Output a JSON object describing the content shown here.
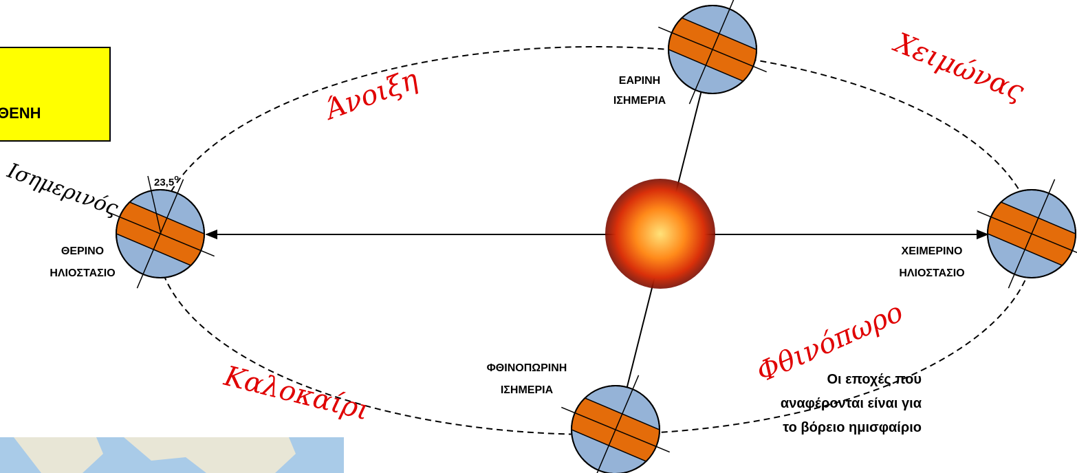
{
  "header": {
    "box_text": "ΘΕΝΗ"
  },
  "seasons": {
    "spring": "Άνοιξη",
    "winter": "Χειμώνας",
    "summer": "Καλοκαίρι",
    "autumn": "Φθινόπωρο"
  },
  "equator_label": "Ισημερινός",
  "tilt": {
    "value": "23,5",
    "unit": "o"
  },
  "positions": [
    {
      "lines": [
        "ΕΑΡΙΝΗ",
        "ΙΣΗΜΕΡΙΑ"
      ]
    },
    {
      "lines": [
        "ΘΕΡΙΝΟ",
        "ΗΛΙΟΣΤΑΣΙΟ"
      ]
    },
    {
      "lines": [
        "ΧΕΙΜΕΡΙΝΟ",
        "ΗΛΙΟΣΤΑΣΙΟ"
      ]
    },
    {
      "lines": [
        "ΦΘΙΝΟΠΩΡΙΝΗ",
        "ΙΣΗΜΕΡΙΑ"
      ]
    }
  ],
  "note": {
    "lines": [
      "Οι εποχές που",
      "αναφέρονται είναι για",
      "το βόρειο ημισφαίριο"
    ]
  }
}
